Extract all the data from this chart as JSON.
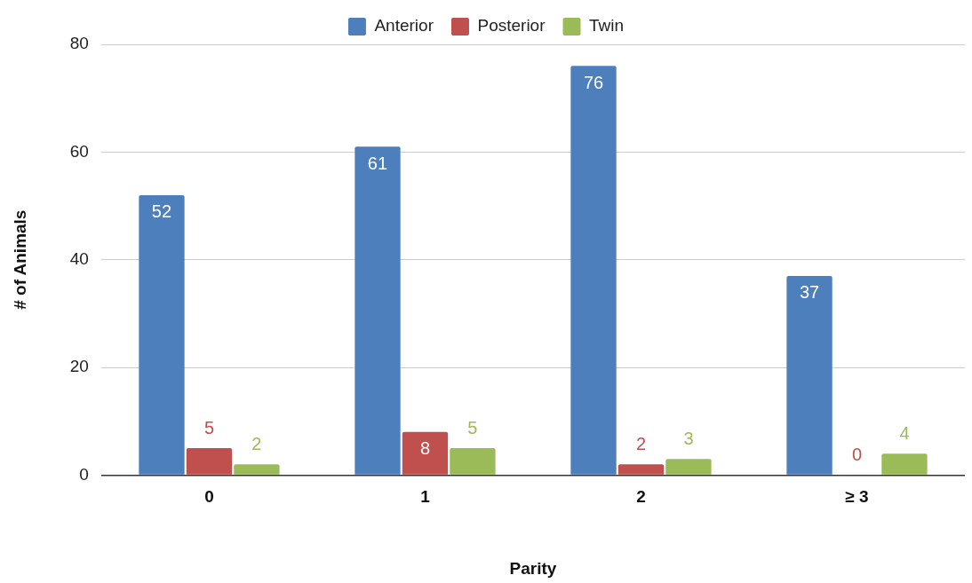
{
  "chart_data": {
    "type": "bar",
    "xlabel": "Parity",
    "ylabel": "# of Animals",
    "categories": [
      "0",
      "1",
      "2",
      "≥ 3"
    ],
    "series": [
      {
        "name": "Anterior",
        "color": "#4e7fbd",
        "values": [
          52,
          61,
          76,
          37
        ]
      },
      {
        "name": "Posterior",
        "color": "#c0504d",
        "values": [
          5,
          8,
          2,
          0
        ]
      },
      {
        "name": "Twin",
        "color": "#9bbb59",
        "values": [
          2,
          5,
          3,
          4
        ]
      }
    ],
    "ylim": [
      0,
      80
    ],
    "yticks": [
      0,
      20,
      40,
      60,
      80
    ],
    "grid": "y",
    "legend": "top",
    "data_labels": true
  }
}
